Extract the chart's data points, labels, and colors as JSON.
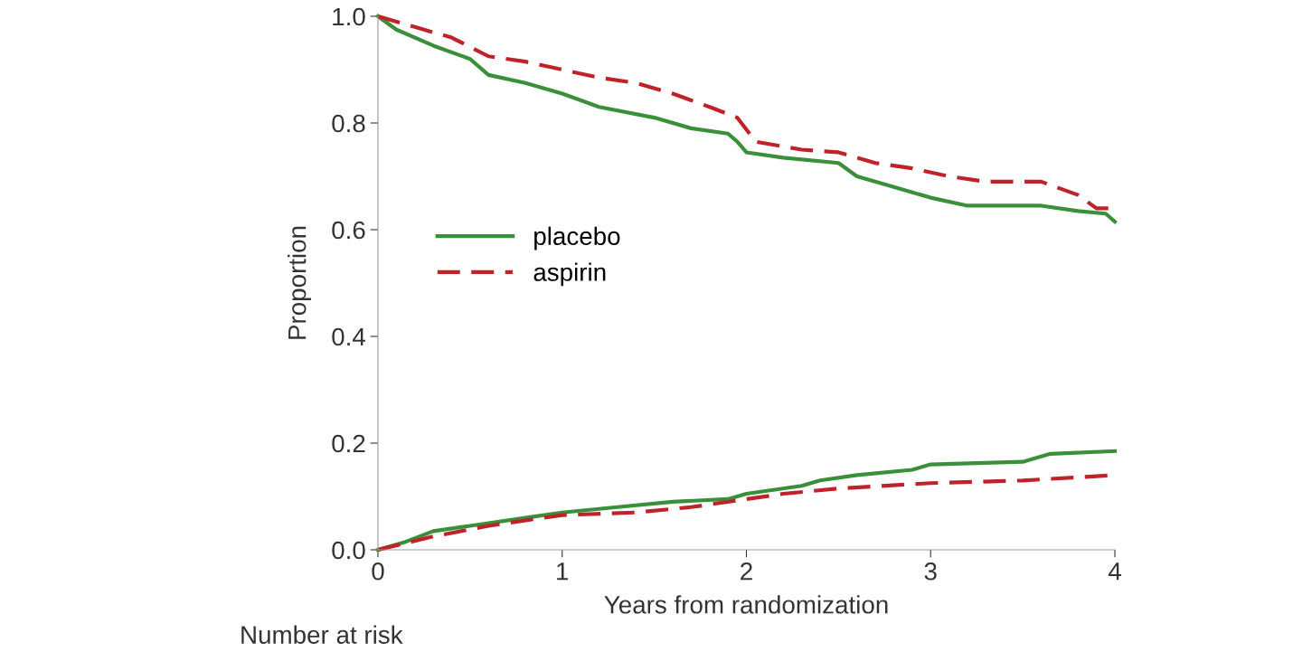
{
  "chart_data": {
    "type": "line",
    "xlabel": "Years from randomization",
    "ylabel": "Proportion",
    "xlim": [
      0,
      4
    ],
    "xticks": [
      0,
      1,
      2,
      3,
      4
    ],
    "ylim": [
      0,
      1.0
    ],
    "yticks": [
      {
        "value": 0,
        "label": "0.0"
      },
      {
        "value": 0.2,
        "label": "0.2"
      },
      {
        "value": 0.4,
        "label": "0.4"
      },
      {
        "value": 0.6,
        "label": "0.6"
      },
      {
        "value": 0.8,
        "label": "0.8"
      },
      {
        "value": 1.0,
        "label": "1.0"
      }
    ],
    "grid": false,
    "legend": "center left",
    "series": [
      {
        "name": "placebo",
        "color": "#3a8f3a",
        "line_style": "solid",
        "x": [
          0,
          0.1,
          0.3,
          0.5,
          0.6,
          0.8,
          1.0,
          1.2,
          1.5,
          1.7,
          1.9,
          1.95,
          2.0,
          2.2,
          2.5,
          2.6,
          2.8,
          3.0,
          3.2,
          3.6,
          3.8,
          3.95,
          4.0
        ],
        "values": [
          1.0,
          0.975,
          0.945,
          0.92,
          0.89,
          0.875,
          0.855,
          0.83,
          0.81,
          0.79,
          0.78,
          0.765,
          0.745,
          0.735,
          0.725,
          0.7,
          0.68,
          0.66,
          0.645,
          0.645,
          0.635,
          0.63,
          0.615
        ]
      },
      {
        "name": "aspirin",
        "color": "#c0222a",
        "line_style": "dashed",
        "x": [
          0,
          0.2,
          0.4,
          0.6,
          0.8,
          1.0,
          1.2,
          1.4,
          1.6,
          1.8,
          1.95,
          2.05,
          2.3,
          2.5,
          2.7,
          2.9,
          3.1,
          3.3,
          3.6,
          3.8,
          3.9,
          4.0
        ],
        "values": [
          1.0,
          0.98,
          0.96,
          0.925,
          0.915,
          0.9,
          0.885,
          0.875,
          0.855,
          0.83,
          0.81,
          0.765,
          0.75,
          0.745,
          0.725,
          0.715,
          0.7,
          0.69,
          0.69,
          0.665,
          0.64,
          0.64
        ]
      },
      {
        "color": "#3a8f3a",
        "line_style": "solid",
        "x": [
          0,
          0.15,
          0.3,
          0.5,
          0.8,
          1.0,
          1.3,
          1.6,
          1.9,
          2.0,
          2.3,
          2.4,
          2.6,
          2.9,
          3.0,
          3.5,
          3.65,
          4.0
        ],
        "values": [
          0,
          0.015,
          0.035,
          0.045,
          0.06,
          0.07,
          0.08,
          0.09,
          0.095,
          0.105,
          0.12,
          0.13,
          0.14,
          0.15,
          0.16,
          0.165,
          0.18,
          0.185
        ]
      },
      {
        "color": "#c0222a",
        "line_style": "dashed",
        "x": [
          0,
          0.3,
          0.6,
          1.0,
          1.4,
          1.7,
          2.0,
          2.2,
          2.5,
          3.0,
          3.5,
          4.0
        ],
        "values": [
          0,
          0.025,
          0.045,
          0.065,
          0.07,
          0.08,
          0.095,
          0.105,
          0.115,
          0.125,
          0.13,
          0.14
        ]
      }
    ],
    "annotations": [
      "Number at risk"
    ]
  }
}
